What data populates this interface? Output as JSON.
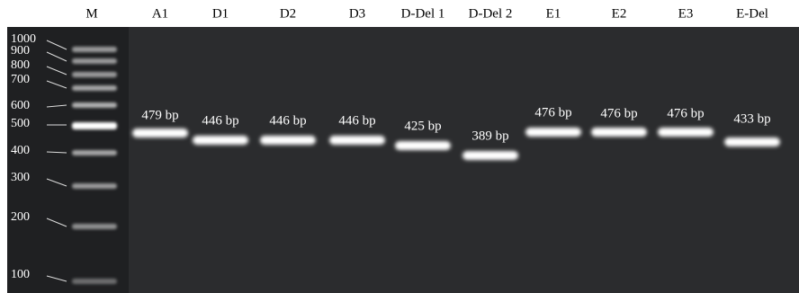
{
  "lanes": [
    "M",
    "A1",
    "D1",
    "D2",
    "D3",
    "D-Del 1",
    "D-Del 2",
    "E1",
    "E2",
    "E3",
    "E-Del"
  ],
  "marker_sizes": [
    "1000",
    "900",
    "800",
    "700",
    "600",
    "500",
    "400",
    "300",
    "200",
    "100"
  ],
  "band_labels": [
    "479 bp",
    "446 bp",
    "446 bp",
    "446 bp",
    "425 bp",
    "389 bp",
    "476 bp",
    "476 bp",
    "476 bp",
    "433 bp"
  ]
}
